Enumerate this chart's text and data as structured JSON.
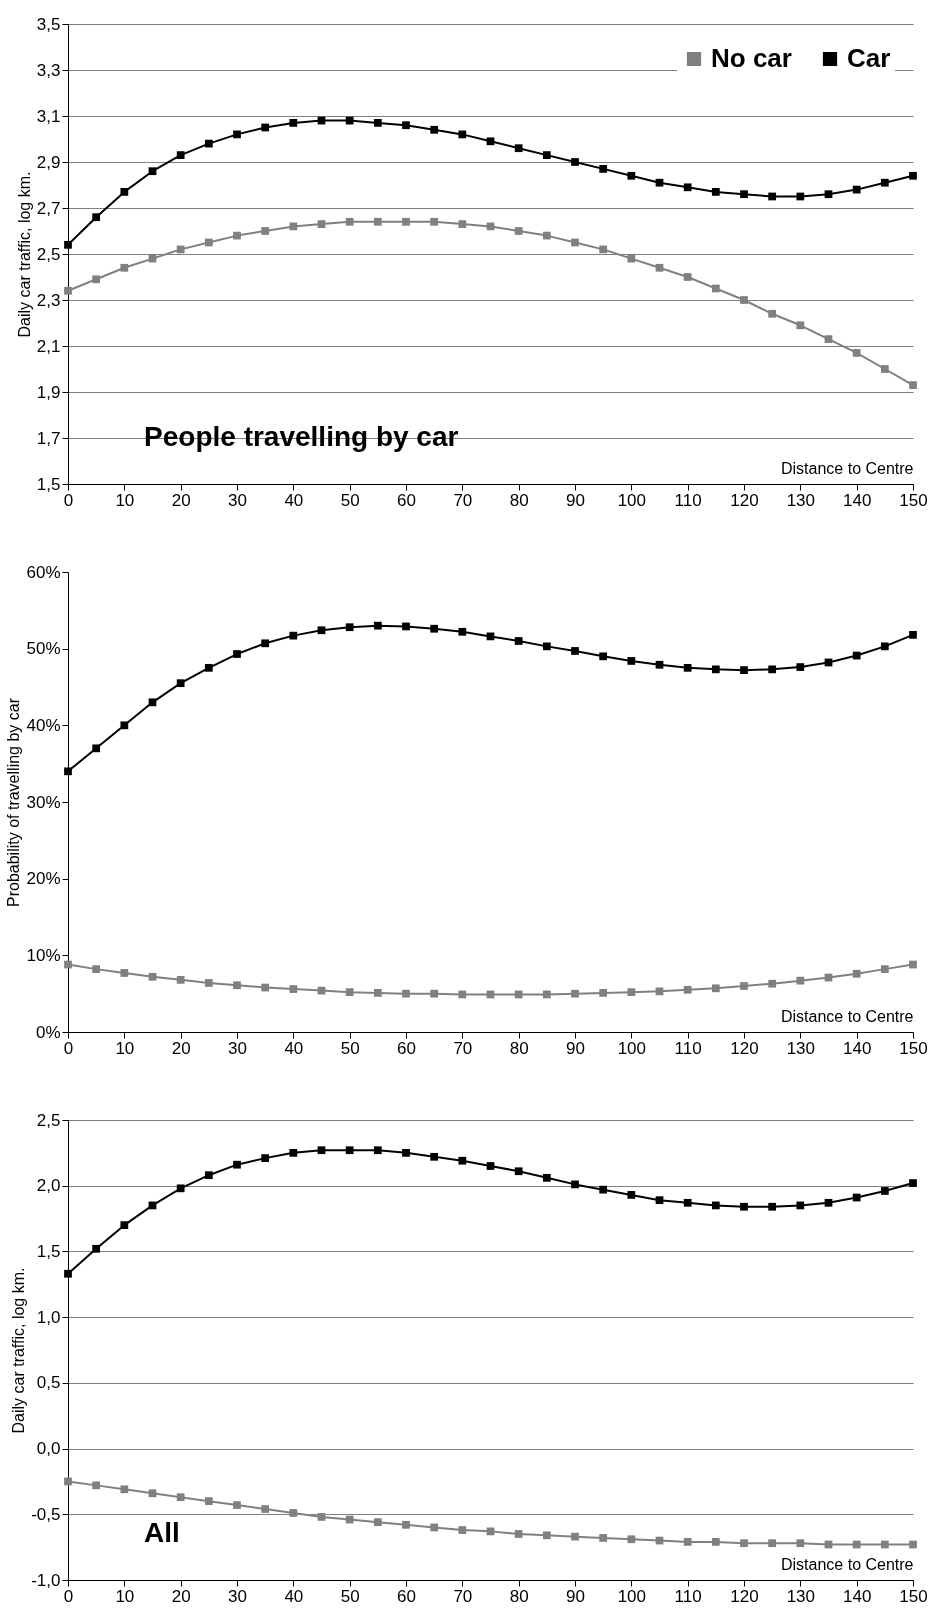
{
  "chart_data": [
    {
      "type": "line",
      "xlabel": "Distance to Centre",
      "ylabel": "Daily car traffic, log km.",
      "annotations": [
        "People travelling by car"
      ],
      "x": [
        0,
        5,
        10,
        15,
        20,
        25,
        30,
        35,
        40,
        45,
        50,
        55,
        60,
        65,
        70,
        75,
        80,
        85,
        90,
        95,
        100,
        105,
        110,
        115,
        120,
        125,
        130,
        135,
        140,
        145,
        150
      ],
      "xlim": [
        0,
        150
      ],
      "xticks": [
        0,
        10,
        20,
        30,
        40,
        50,
        60,
        70,
        80,
        90,
        100,
        110,
        120,
        130,
        140,
        150
      ],
      "ylim": [
        1.5,
        3.5
      ],
      "yticks": [
        {
          "value": 1.5,
          "label": "1,5"
        },
        {
          "value": 1.7,
          "label": "1,7"
        },
        {
          "value": 1.9,
          "label": "1,9"
        },
        {
          "value": 2.1,
          "label": "2,1"
        },
        {
          "value": 2.3,
          "label": "2,3"
        },
        {
          "value": 2.5,
          "label": "2,5"
        },
        {
          "value": 2.7,
          "label": "2,7"
        },
        {
          "value": 2.9,
          "label": "2,9"
        },
        {
          "value": 3.1,
          "label": "3,1"
        },
        {
          "value": 3.3,
          "label": "3,3"
        },
        {
          "value": 3.5,
          "label": "3,5"
        }
      ],
      "grid": "y",
      "legend": "top right",
      "marker": "square",
      "line_style": "solid",
      "series": [
        {
          "name": "No car",
          "color": "#808080",
          "values": [
            2.34,
            2.39,
            2.44,
            2.48,
            2.52,
            2.55,
            2.58,
            2.6,
            2.62,
            2.63,
            2.64,
            2.64,
            2.64,
            2.64,
            2.63,
            2.62,
            2.6,
            2.58,
            2.55,
            2.52,
            2.48,
            2.44,
            2.4,
            2.35,
            2.3,
            2.24,
            2.19,
            2.13,
            2.07,
            2.0,
            1.93
          ]
        },
        {
          "name": "Car",
          "color": "#000000",
          "values": [
            2.54,
            2.66,
            2.77,
            2.86,
            2.93,
            2.98,
            3.02,
            3.05,
            3.07,
            3.08,
            3.08,
            3.07,
            3.06,
            3.04,
            3.02,
            2.99,
            2.96,
            2.93,
            2.9,
            2.87,
            2.84,
            2.81,
            2.79,
            2.77,
            2.76,
            2.75,
            2.75,
            2.76,
            2.78,
            2.81,
            2.84
          ]
        }
      ]
    },
    {
      "type": "line",
      "xlabel": "Distance to Centre",
      "ylabel": "Probability of travelling by car",
      "x": [
        0,
        5,
        10,
        15,
        20,
        25,
        30,
        35,
        40,
        45,
        50,
        55,
        60,
        65,
        70,
        75,
        80,
        85,
        90,
        95,
        100,
        105,
        110,
        115,
        120,
        125,
        130,
        135,
        140,
        145,
        150
      ],
      "xlim": [
        0,
        150
      ],
      "xticks": [
        0,
        10,
        20,
        30,
        40,
        50,
        60,
        70,
        80,
        90,
        100,
        110,
        120,
        130,
        140,
        150
      ],
      "ylim": [
        0,
        60
      ],
      "yticks": [
        {
          "value": 0,
          "label": "0%"
        },
        {
          "value": 10,
          "label": "10%"
        },
        {
          "value": 20,
          "label": "20%"
        },
        {
          "value": 30,
          "label": "30%"
        },
        {
          "value": 40,
          "label": "40%"
        },
        {
          "value": 50,
          "label": "50%"
        },
        {
          "value": 60,
          "label": "60%"
        }
      ],
      "legend": "top right",
      "marker": "square",
      "line_style": "solid",
      "series": [
        {
          "name": "No car",
          "color": "#808080",
          "values": [
            8.8,
            8.2,
            7.7,
            7.2,
            6.8,
            6.4,
            6.1,
            5.8,
            5.6,
            5.4,
            5.2,
            5.1,
            5.0,
            5.0,
            4.9,
            4.9,
            4.9,
            4.9,
            5.0,
            5.1,
            5.2,
            5.3,
            5.5,
            5.7,
            6.0,
            6.3,
            6.7,
            7.1,
            7.6,
            8.2,
            8.8
          ]
        },
        {
          "name": "Car",
          "color": "#000000",
          "values": [
            34,
            37,
            40,
            43,
            45.5,
            47.5,
            49.3,
            50.7,
            51.7,
            52.4,
            52.8,
            53,
            52.9,
            52.6,
            52.2,
            51.6,
            51,
            50.3,
            49.7,
            49,
            48.4,
            47.9,
            47.5,
            47.3,
            47.2,
            47.3,
            47.6,
            48.2,
            49.1,
            50.3,
            51.8
          ]
        }
      ]
    },
    {
      "type": "line",
      "xlabel": "Distance to Centre",
      "ylabel": "Daily car traffic, log km.",
      "annotations": [
        "All"
      ],
      "x": [
        0,
        5,
        10,
        15,
        20,
        25,
        30,
        35,
        40,
        45,
        50,
        55,
        60,
        65,
        70,
        75,
        80,
        85,
        90,
        95,
        100,
        105,
        110,
        115,
        120,
        125,
        130,
        135,
        140,
        145,
        150
      ],
      "xlim": [
        0,
        150
      ],
      "xticks": [
        0,
        10,
        20,
        30,
        40,
        50,
        60,
        70,
        80,
        90,
        100,
        110,
        120,
        130,
        140,
        150
      ],
      "ylim": [
        -1.0,
        2.5
      ],
      "yticks": [
        {
          "value": -1.0,
          "label": "-1,0"
        },
        {
          "value": -0.5,
          "label": "-0,5"
        },
        {
          "value": 0,
          "label": "0,0"
        },
        {
          "value": 0.5,
          "label": "0,5"
        },
        {
          "value": 1.0,
          "label": "1,0"
        },
        {
          "value": 1.5,
          "label": "1,5"
        },
        {
          "value": 2.0,
          "label": "2,0"
        },
        {
          "value": 2.5,
          "label": "2,5"
        }
      ],
      "grid": "y",
      "legend": "top right",
      "marker": "square",
      "line_style": "solid",
      "series": [
        {
          "name": "No car",
          "color": "#808080",
          "values": [
            -0.25,
            -0.28,
            -0.31,
            -0.34,
            -0.37,
            -0.4,
            -0.43,
            -0.46,
            -0.49,
            -0.52,
            -0.54,
            -0.56,
            -0.58,
            -0.6,
            -0.62,
            -0.63,
            -0.65,
            -0.66,
            -0.67,
            -0.68,
            -0.69,
            -0.7,
            -0.71,
            -0.71,
            -0.72,
            -0.72,
            -0.72,
            -0.73,
            -0.73,
            -0.73,
            -0.73
          ]
        },
        {
          "name": "Car",
          "color": "#000000",
          "values": [
            1.33,
            1.52,
            1.7,
            1.85,
            1.98,
            2.08,
            2.16,
            2.21,
            2.25,
            2.27,
            2.27,
            2.27,
            2.25,
            2.22,
            2.19,
            2.15,
            2.11,
            2.06,
            2.01,
            1.97,
            1.93,
            1.89,
            1.87,
            1.85,
            1.84,
            1.84,
            1.85,
            1.87,
            1.91,
            1.96,
            2.02
          ]
        }
      ]
    }
  ]
}
